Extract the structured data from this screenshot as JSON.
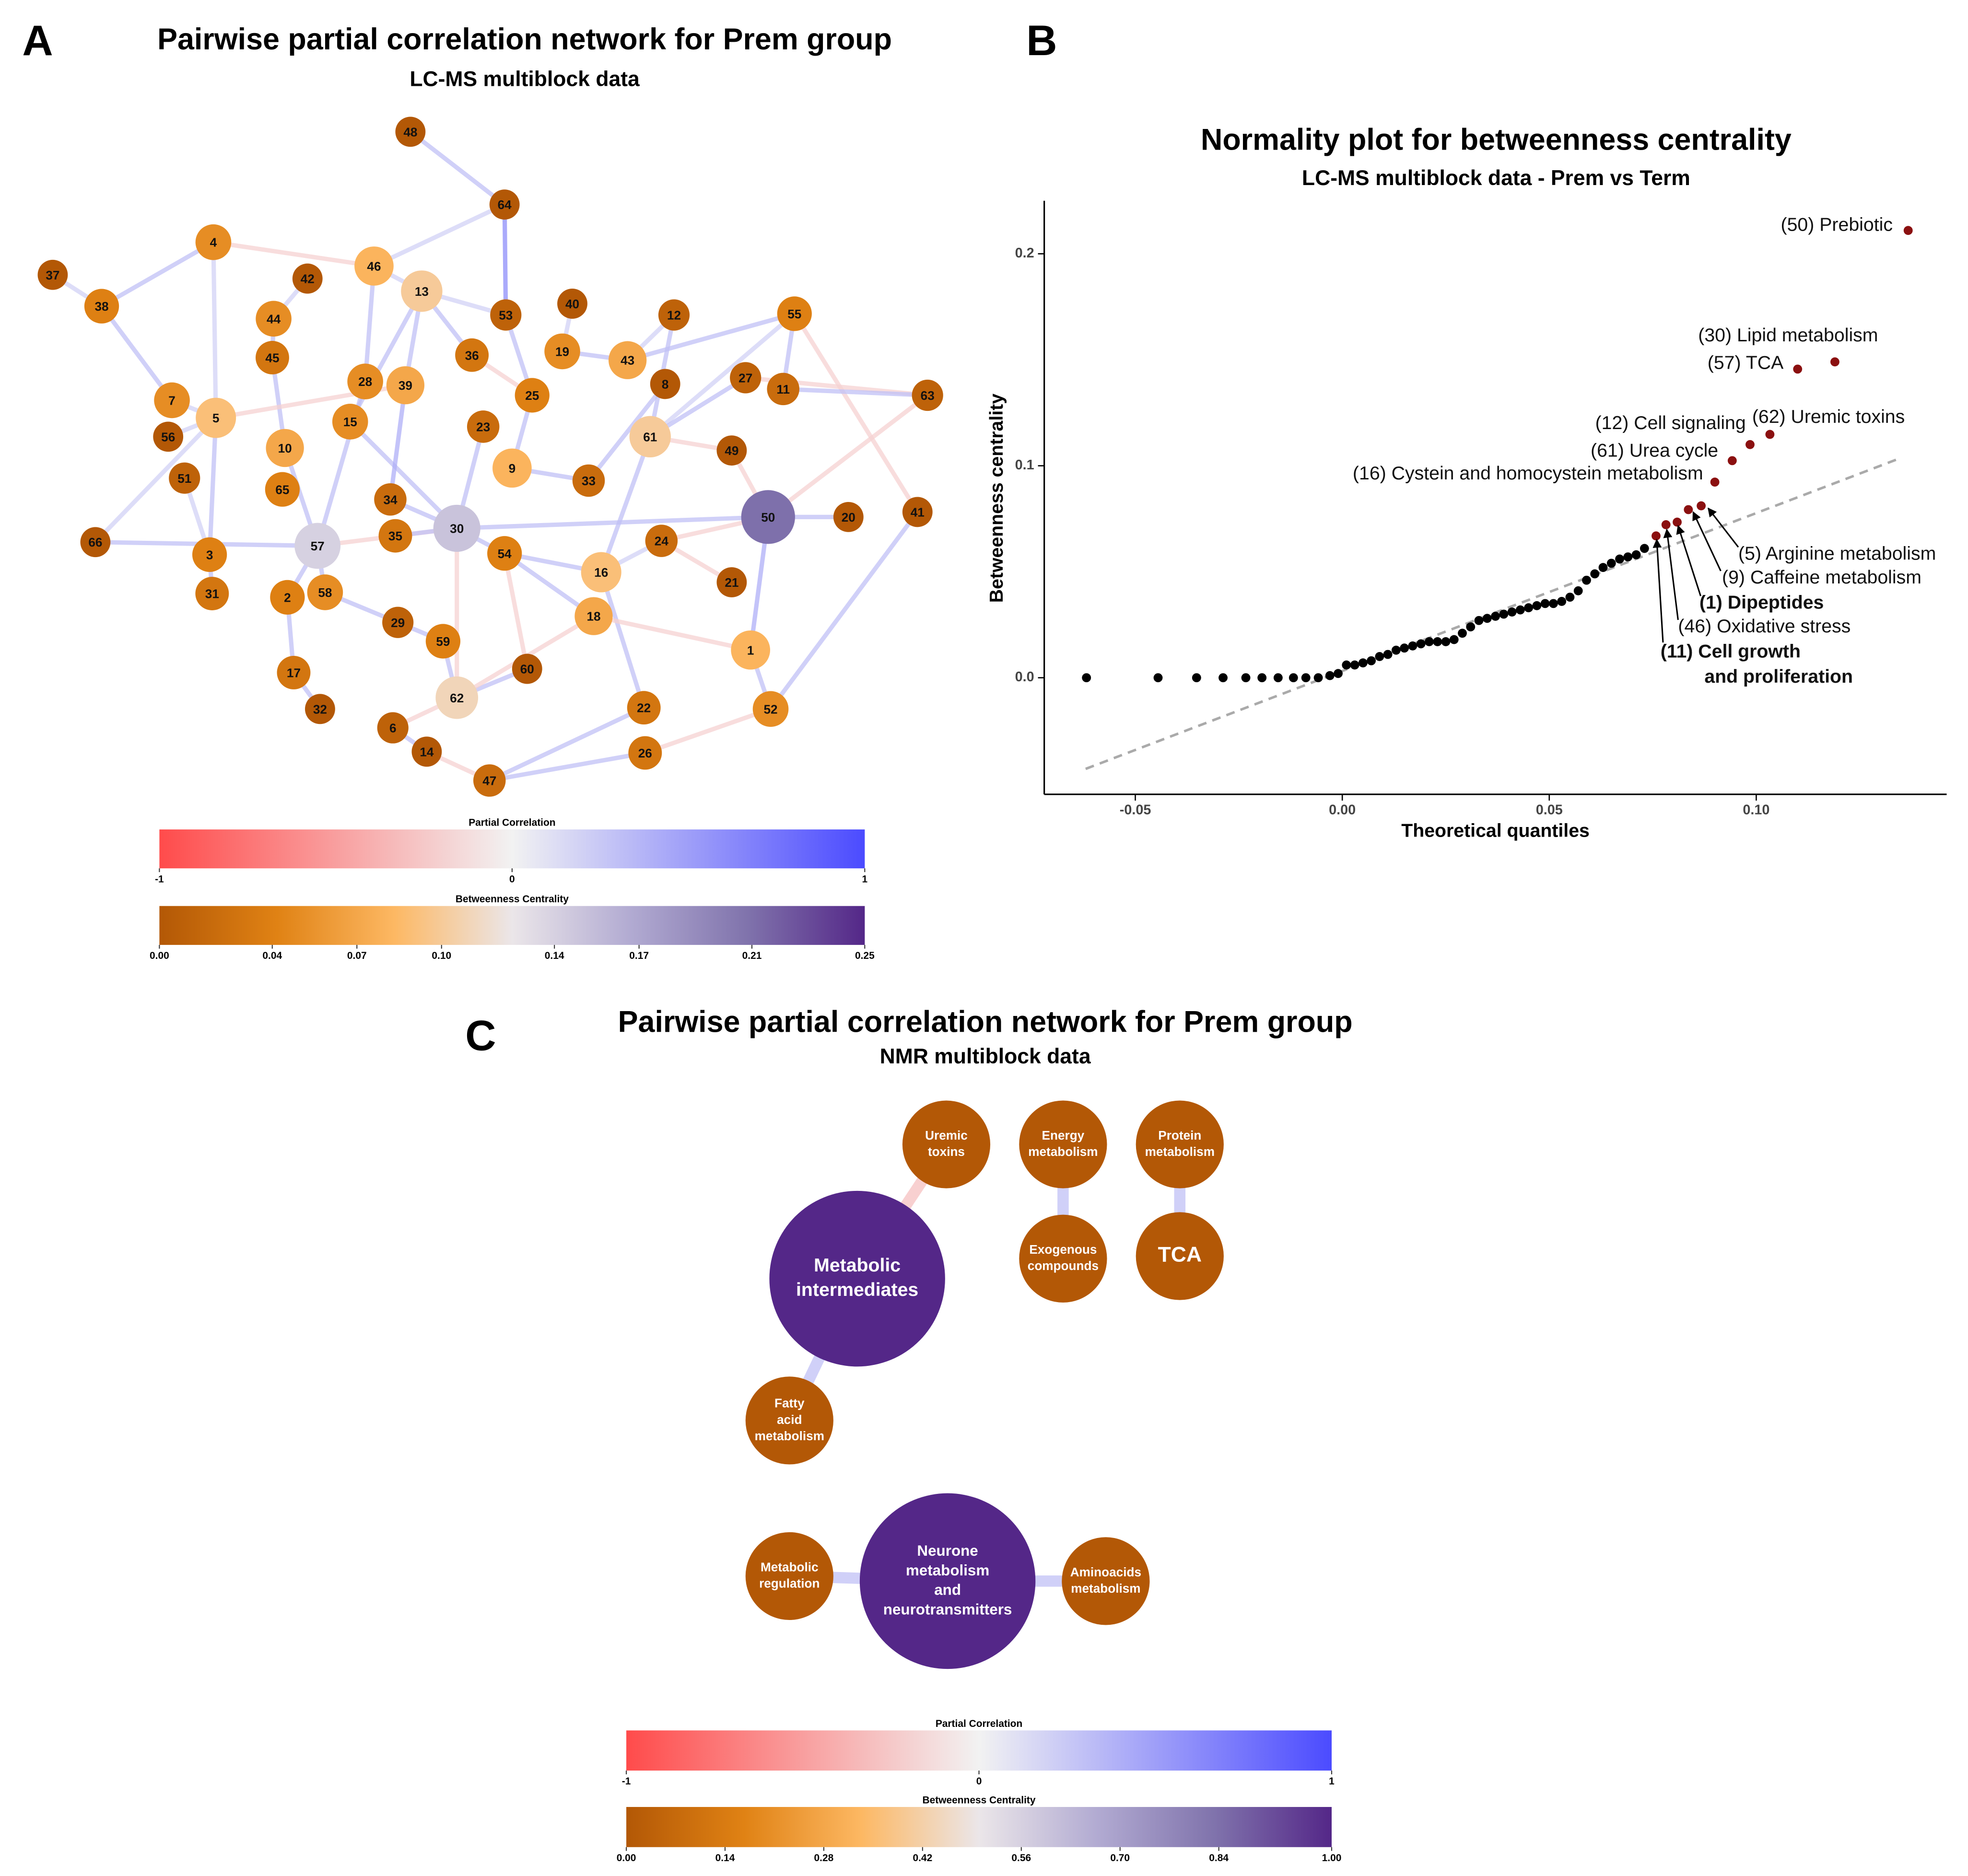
{
  "panel_labels": [
    "A",
    "B",
    "C"
  ],
  "chart_data": [
    {
      "type": "network",
      "title": "Pairwise partial correlation network for Prem group",
      "subtitle": "LC-MS multiblock data",
      "nodes": [
        {
          "label": "48",
          "betweenness": 0
        },
        {
          "label": "64",
          "betweenness": 0
        },
        {
          "label": "4",
          "betweenness": 0.05
        },
        {
          "label": "46",
          "betweenness": 0.08
        },
        {
          "label": "13",
          "betweenness": 0.1
        },
        {
          "label": "42",
          "betweenness": 0
        },
        {
          "label": "37",
          "betweenness": 0
        },
        {
          "label": "38",
          "betweenness": 0.04
        },
        {
          "label": "44",
          "betweenness": 0.05
        },
        {
          "label": "53",
          "betweenness": 0.01
        },
        {
          "label": "40",
          "betweenness": 0
        },
        {
          "label": "12",
          "betweenness": 0.01
        },
        {
          "label": "55",
          "betweenness": 0.04
        },
        {
          "label": "45",
          "betweenness": 0.03
        },
        {
          "label": "19",
          "betweenness": 0.05
        },
        {
          "label": "43",
          "betweenness": 0.07
        },
        {
          "label": "36",
          "betweenness": 0.03
        },
        {
          "label": "28",
          "betweenness": 0.05
        },
        {
          "label": "39",
          "betweenness": 0.07
        },
        {
          "label": "27",
          "betweenness": 0.01
        },
        {
          "label": "11",
          "betweenness": 0.02
        },
        {
          "label": "8",
          "betweenness": 0
        },
        {
          "label": "63",
          "betweenness": 0.01
        },
        {
          "label": "7",
          "betweenness": 0.05
        },
        {
          "label": "5",
          "betweenness": 0.09
        },
        {
          "label": "25",
          "betweenness": 0.04
        },
        {
          "label": "15",
          "betweenness": 0.05
        },
        {
          "label": "23",
          "betweenness": 0.02
        },
        {
          "label": "61",
          "betweenness": 0.1
        },
        {
          "label": "56",
          "betweenness": 0
        },
        {
          "label": "10",
          "betweenness": 0.07
        },
        {
          "label": "49",
          "betweenness": 0
        },
        {
          "label": "9",
          "betweenness": 0.08
        },
        {
          "label": "51",
          "betweenness": 0.01
        },
        {
          "label": "33",
          "betweenness": 0.02
        },
        {
          "label": "65",
          "betweenness": 0.04
        },
        {
          "label": "34",
          "betweenness": 0.02
        },
        {
          "label": "30",
          "betweenness": 0.15
        },
        {
          "label": "50",
          "betweenness": 0.21
        },
        {
          "label": "20",
          "betweenness": 0
        },
        {
          "label": "41",
          "betweenness": 0
        },
        {
          "label": "66",
          "betweenness": 0
        },
        {
          "label": "57",
          "betweenness": 0.14
        },
        {
          "label": "35",
          "betweenness": 0.03
        },
        {
          "label": "54",
          "betweenness": 0.04
        },
        {
          "label": "24",
          "betweenness": 0.02
        },
        {
          "label": "3",
          "betweenness": 0.04
        },
        {
          "label": "16",
          "betweenness": 0.09
        },
        {
          "label": "21",
          "betweenness": 0
        },
        {
          "label": "31",
          "betweenness": 0.03
        },
        {
          "label": "2",
          "betweenness": 0.04
        },
        {
          "label": "58",
          "betweenness": 0.05
        },
        {
          "label": "29",
          "betweenness": 0.01
        },
        {
          "label": "18",
          "betweenness": 0.07
        },
        {
          "label": "59",
          "betweenness": 0.04
        },
        {
          "label": "1",
          "betweenness": 0.08
        },
        {
          "label": "60",
          "betweenness": 0
        },
        {
          "label": "17",
          "betweenness": 0.03
        },
        {
          "label": "62",
          "betweenness": 0.11
        },
        {
          "label": "32",
          "betweenness": 0
        },
        {
          "label": "22",
          "betweenness": 0.03
        },
        {
          "label": "52",
          "betweenness": 0.05
        },
        {
          "label": "6",
          "betweenness": 0.01
        },
        {
          "label": "14",
          "betweenness": 0
        },
        {
          "label": "26",
          "betweenness": 0.03
        },
        {
          "label": "47",
          "betweenness": 0.02
        }
      ],
      "edges": [
        [
          0,
          1,
          0.3
        ],
        [
          1,
          3,
          0.2
        ],
        [
          1,
          9,
          0.6
        ],
        [
          2,
          3,
          -0.2
        ],
        [
          2,
          7,
          0.3
        ],
        [
          2,
          24,
          0.2
        ],
        [
          6,
          7,
          0.2
        ],
        [
          7,
          23,
          0.3
        ],
        [
          4,
          3,
          0.2
        ],
        [
          4,
          16,
          0.3
        ],
        [
          4,
          9,
          0.2
        ],
        [
          4,
          18,
          0.3
        ],
        [
          4,
          26,
          0.3
        ],
        [
          5,
          8,
          0.2
        ],
        [
          8,
          13,
          0.3
        ],
        [
          3,
          17,
          0.3
        ],
        [
          13,
          30,
          0.3
        ],
        [
          9,
          25,
          0.3
        ],
        [
          10,
          14,
          0.2
        ],
        [
          14,
          15,
          0.3
        ],
        [
          15,
          11,
          0.2
        ],
        [
          15,
          12,
          0.3
        ],
        [
          12,
          20,
          0.3
        ],
        [
          12,
          28,
          0.2
        ],
        [
          12,
          40,
          -0.2
        ],
        [
          19,
          22,
          -0.2
        ],
        [
          20,
          22,
          0.3
        ],
        [
          22,
          38,
          -0.2
        ],
        [
          24,
          23,
          0.2
        ],
        [
          24,
          18,
          -0.2
        ],
        [
          24,
          46,
          0.3
        ],
        [
          24,
          41,
          0.2
        ],
        [
          33,
          46,
          0.2
        ],
        [
          29,
          24,
          0.2
        ],
        [
          26,
          37,
          0.3
        ],
        [
          18,
          36,
          0.4
        ],
        [
          17,
          42,
          0.3
        ],
        [
          27,
          37,
          0.3
        ],
        [
          25,
          32,
          0.3
        ],
        [
          16,
          25,
          -0.2
        ],
        [
          28,
          47,
          0.3
        ],
        [
          28,
          31,
          -0.2
        ],
        [
          31,
          38,
          -0.2
        ],
        [
          38,
          39,
          0.3
        ],
        [
          38,
          55,
          0.4
        ],
        [
          38,
          37,
          0.3
        ],
        [
          38,
          45,
          -0.2
        ],
        [
          40,
          61,
          0.3
        ],
        [
          42,
          37,
          -0.2
        ],
        [
          42,
          41,
          0.3
        ],
        [
          42,
          50,
          0.3
        ],
        [
          42,
          30,
          0.3
        ],
        [
          37,
          44,
          0.3
        ],
        [
          37,
          58,
          -0.2
        ],
        [
          37,
          36,
          0.3
        ],
        [
          43,
          37,
          0.3
        ],
        [
          44,
          53,
          0.3
        ],
        [
          47,
          44,
          0.3
        ],
        [
          47,
          45,
          0.2
        ],
        [
          45,
          48,
          -0.2
        ],
        [
          46,
          49,
          0.3
        ],
        [
          51,
          42,
          0.3
        ],
        [
          50,
          57,
          0.3
        ],
        [
          57,
          59,
          0.3
        ],
        [
          51,
          52,
          0.3
        ],
        [
          52,
          54,
          0.3
        ],
        [
          54,
          58,
          0.3
        ],
        [
          58,
          62,
          -0.2
        ],
        [
          62,
          63,
          0.3
        ],
        [
          63,
          65,
          -0.2
        ],
        [
          65,
          60,
          0.3
        ],
        [
          65,
          64,
          0.3
        ],
        [
          60,
          47,
          0.3
        ],
        [
          64,
          61,
          -0.2
        ],
        [
          55,
          61,
          0.3
        ],
        [
          55,
          53,
          -0.2
        ],
        [
          56,
          44,
          -0.2
        ],
        [
          56,
          58,
          0.3
        ],
        [
          53,
          58,
          -0.2
        ],
        [
          34,
          32,
          0.3
        ],
        [
          11,
          28,
          0.3
        ],
        [
          21,
          34,
          0.3
        ],
        [
          19,
          28,
          0.3
        ]
      ],
      "colorbars": [
        {
          "title": "Partial Correlation",
          "lim": [
            -1,
            1
          ],
          "ticks": [
            -1,
            0,
            1
          ],
          "colors": [
            "#ff4b4b",
            "#f2f2f2",
            "#4b4bff"
          ]
        },
        {
          "title": "Betweenness Centrality",
          "lim": [
            0,
            0.25
          ],
          "ticks": [
            {
              "value": 0,
              "label": "0.00"
            },
            0.04,
            0.07,
            {
              "value": 0.1,
              "label": "0.10"
            },
            0.14,
            0.17,
            0.21,
            0.25
          ],
          "colors": [
            "#b35806",
            "#e08214",
            "#fdb863",
            "#ebe6e9",
            "#b2abd2",
            "#8073ac",
            "#542788"
          ]
        }
      ]
    },
    {
      "type": "scatter",
      "title": "Normality plot for betweenness centrality",
      "subtitle": "LC-MS multiblock data - Prem vs Term",
      "xlabel": "Theoretical quantiles",
      "ylabel": "Betweenness centrality",
      "xlim": [
        -0.072,
        0.146
      ],
      "ylim": [
        -0.055,
        0.225
      ],
      "xticks": [
        -0.05,
        {
          "value": 0,
          "label": "0.00"
        },
        0.05,
        {
          "value": 0.1,
          "label": "0.10"
        }
      ],
      "yticks": [
        {
          "value": 0,
          "label": "0.0"
        },
        0.1,
        0.2
      ],
      "reference_line": {
        "x": [
          -0.062,
          0.134
        ],
        "y": [
          -0.043,
          0.103
        ],
        "color": "#aaaaaa"
      },
      "series": [
        {
          "color": "#000000",
          "x": [
            -0.0618,
            -0.0445,
            -0.0352,
            -0.0288,
            -0.0233,
            -0.0194,
            -0.0155,
            -0.0118,
            -0.0088,
            -0.0058,
            -0.003,
            -0.001,
            0.001,
            0.003,
            0.005,
            0.007,
            0.009,
            0.011,
            0.013,
            0.015,
            0.017,
            0.019,
            0.021,
            0.023,
            0.025,
            0.027,
            0.029,
            0.031,
            0.033,
            0.035,
            0.037,
            0.039,
            0.041,
            0.043,
            0.045,
            0.047,
            0.049,
            0.051,
            0.053,
            0.055,
            0.057,
            0.059,
            0.061,
            0.063,
            0.065,
            0.067,
            0.069,
            0.071,
            0.073
          ],
          "values": [
            0,
            0,
            0,
            0,
            0,
            0,
            0,
            0,
            0,
            0,
            0.001,
            0.002,
            0.006,
            0.006,
            0.007,
            0.008,
            0.01,
            0.011,
            0.013,
            0.014,
            0.015,
            0.016,
            0.017,
            0.017,
            0.017,
            0.018,
            0.021,
            0.024,
            0.027,
            0.028,
            0.029,
            0.03,
            0.031,
            0.032,
            0.033,
            0.034,
            0.035,
            0.035,
            0.036,
            0.038,
            0.041,
            0.046,
            0.049,
            0.052,
            0.054,
            0.056,
            0.057,
            0.058,
            0.061
          ]
        },
        {
          "color": "#8b1010",
          "x": [
            0.0758,
            0.0782,
            0.0809,
            0.0836,
            0.0867,
            0.09,
            0.0942,
            0.0985,
            0.1033,
            0.11,
            0.119,
            0.1367
          ],
          "values": [
            0.0669,
            0.0722,
            0.0734,
            0.0793,
            0.0811,
            0.0923,
            0.1024,
            0.11,
            0.1148,
            0.1456,
            0.149,
            0.211
          ]
        }
      ],
      "annotations": [
        "(50) Prebiotic",
        "(30) Lipid metabolism",
        "(57) TCA",
        "(12) Cell signaling",
        "(62) Uremic toxins",
        "(61) Urea cycle",
        "(16) Cystein and homocystein metabolism",
        "(5) Arginine metabolism",
        "(9) Caffeine metabolism",
        "(1) Dipeptides",
        "(46) Oxidative stress",
        "(11) Cell growth",
        "and proliferation"
      ]
    },
    {
      "type": "network",
      "title": "Pairwise partial correlation network for Prem group",
      "subtitle": "NMR multiblock data",
      "nodes": [
        {
          "label": [
            "Metabolic",
            "intermediates"
          ],
          "betweenness": 1
        },
        {
          "label": [
            "Uremic",
            "toxins"
          ],
          "betweenness": 0
        },
        {
          "label": [
            "Energy",
            "metabolism"
          ],
          "betweenness": 0
        },
        {
          "label": [
            "Protein",
            "metabolism"
          ],
          "betweenness": 0
        },
        {
          "label": [
            "Exogenous",
            "compounds"
          ],
          "betweenness": 0
        },
        {
          "label": [
            "TCA"
          ],
          "betweenness": 0
        },
        {
          "label": [
            "Fatty",
            "acid",
            "metabolism"
          ],
          "betweenness": 0
        },
        {
          "label": [
            "Neurone",
            "metabolism",
            "and",
            "neurotransmitters"
          ],
          "betweenness": 1
        },
        {
          "label": [
            "Metabolic",
            "regulation"
          ],
          "betweenness": 0
        },
        {
          "label": [
            "Aminoacids",
            "metabolism"
          ],
          "betweenness": 0
        }
      ],
      "edges": [
        [
          0,
          1,
          -0.3
        ],
        [
          0,
          6,
          0.3
        ],
        [
          2,
          4,
          0.3
        ],
        [
          3,
          5,
          0.3
        ],
        [
          7,
          8,
          0.3
        ],
        [
          7,
          9,
          0.3
        ]
      ],
      "colorbars": [
        {
          "title": "Partial Correlation",
          "lim": [
            -1,
            1
          ],
          "ticks": [
            -1,
            0,
            1
          ],
          "colors": [
            "#ff4b4b",
            "#f2f2f2",
            "#4b4bff"
          ]
        },
        {
          "title": "Betweenness Centrality",
          "lim": [
            0,
            1
          ],
          "ticks": [
            {
              "value": 0,
              "label": "0.00"
            },
            0.14,
            0.28,
            0.42,
            0.56,
            {
              "value": 0.7,
              "label": "0.70"
            },
            0.84,
            {
              "value": 1,
              "label": "1.00"
            }
          ],
          "colors": [
            "#b35806",
            "#e08214",
            "#fdb863",
            "#ebe6e9",
            "#b2abd2",
            "#8073ac",
            "#542788"
          ]
        }
      ]
    }
  ]
}
